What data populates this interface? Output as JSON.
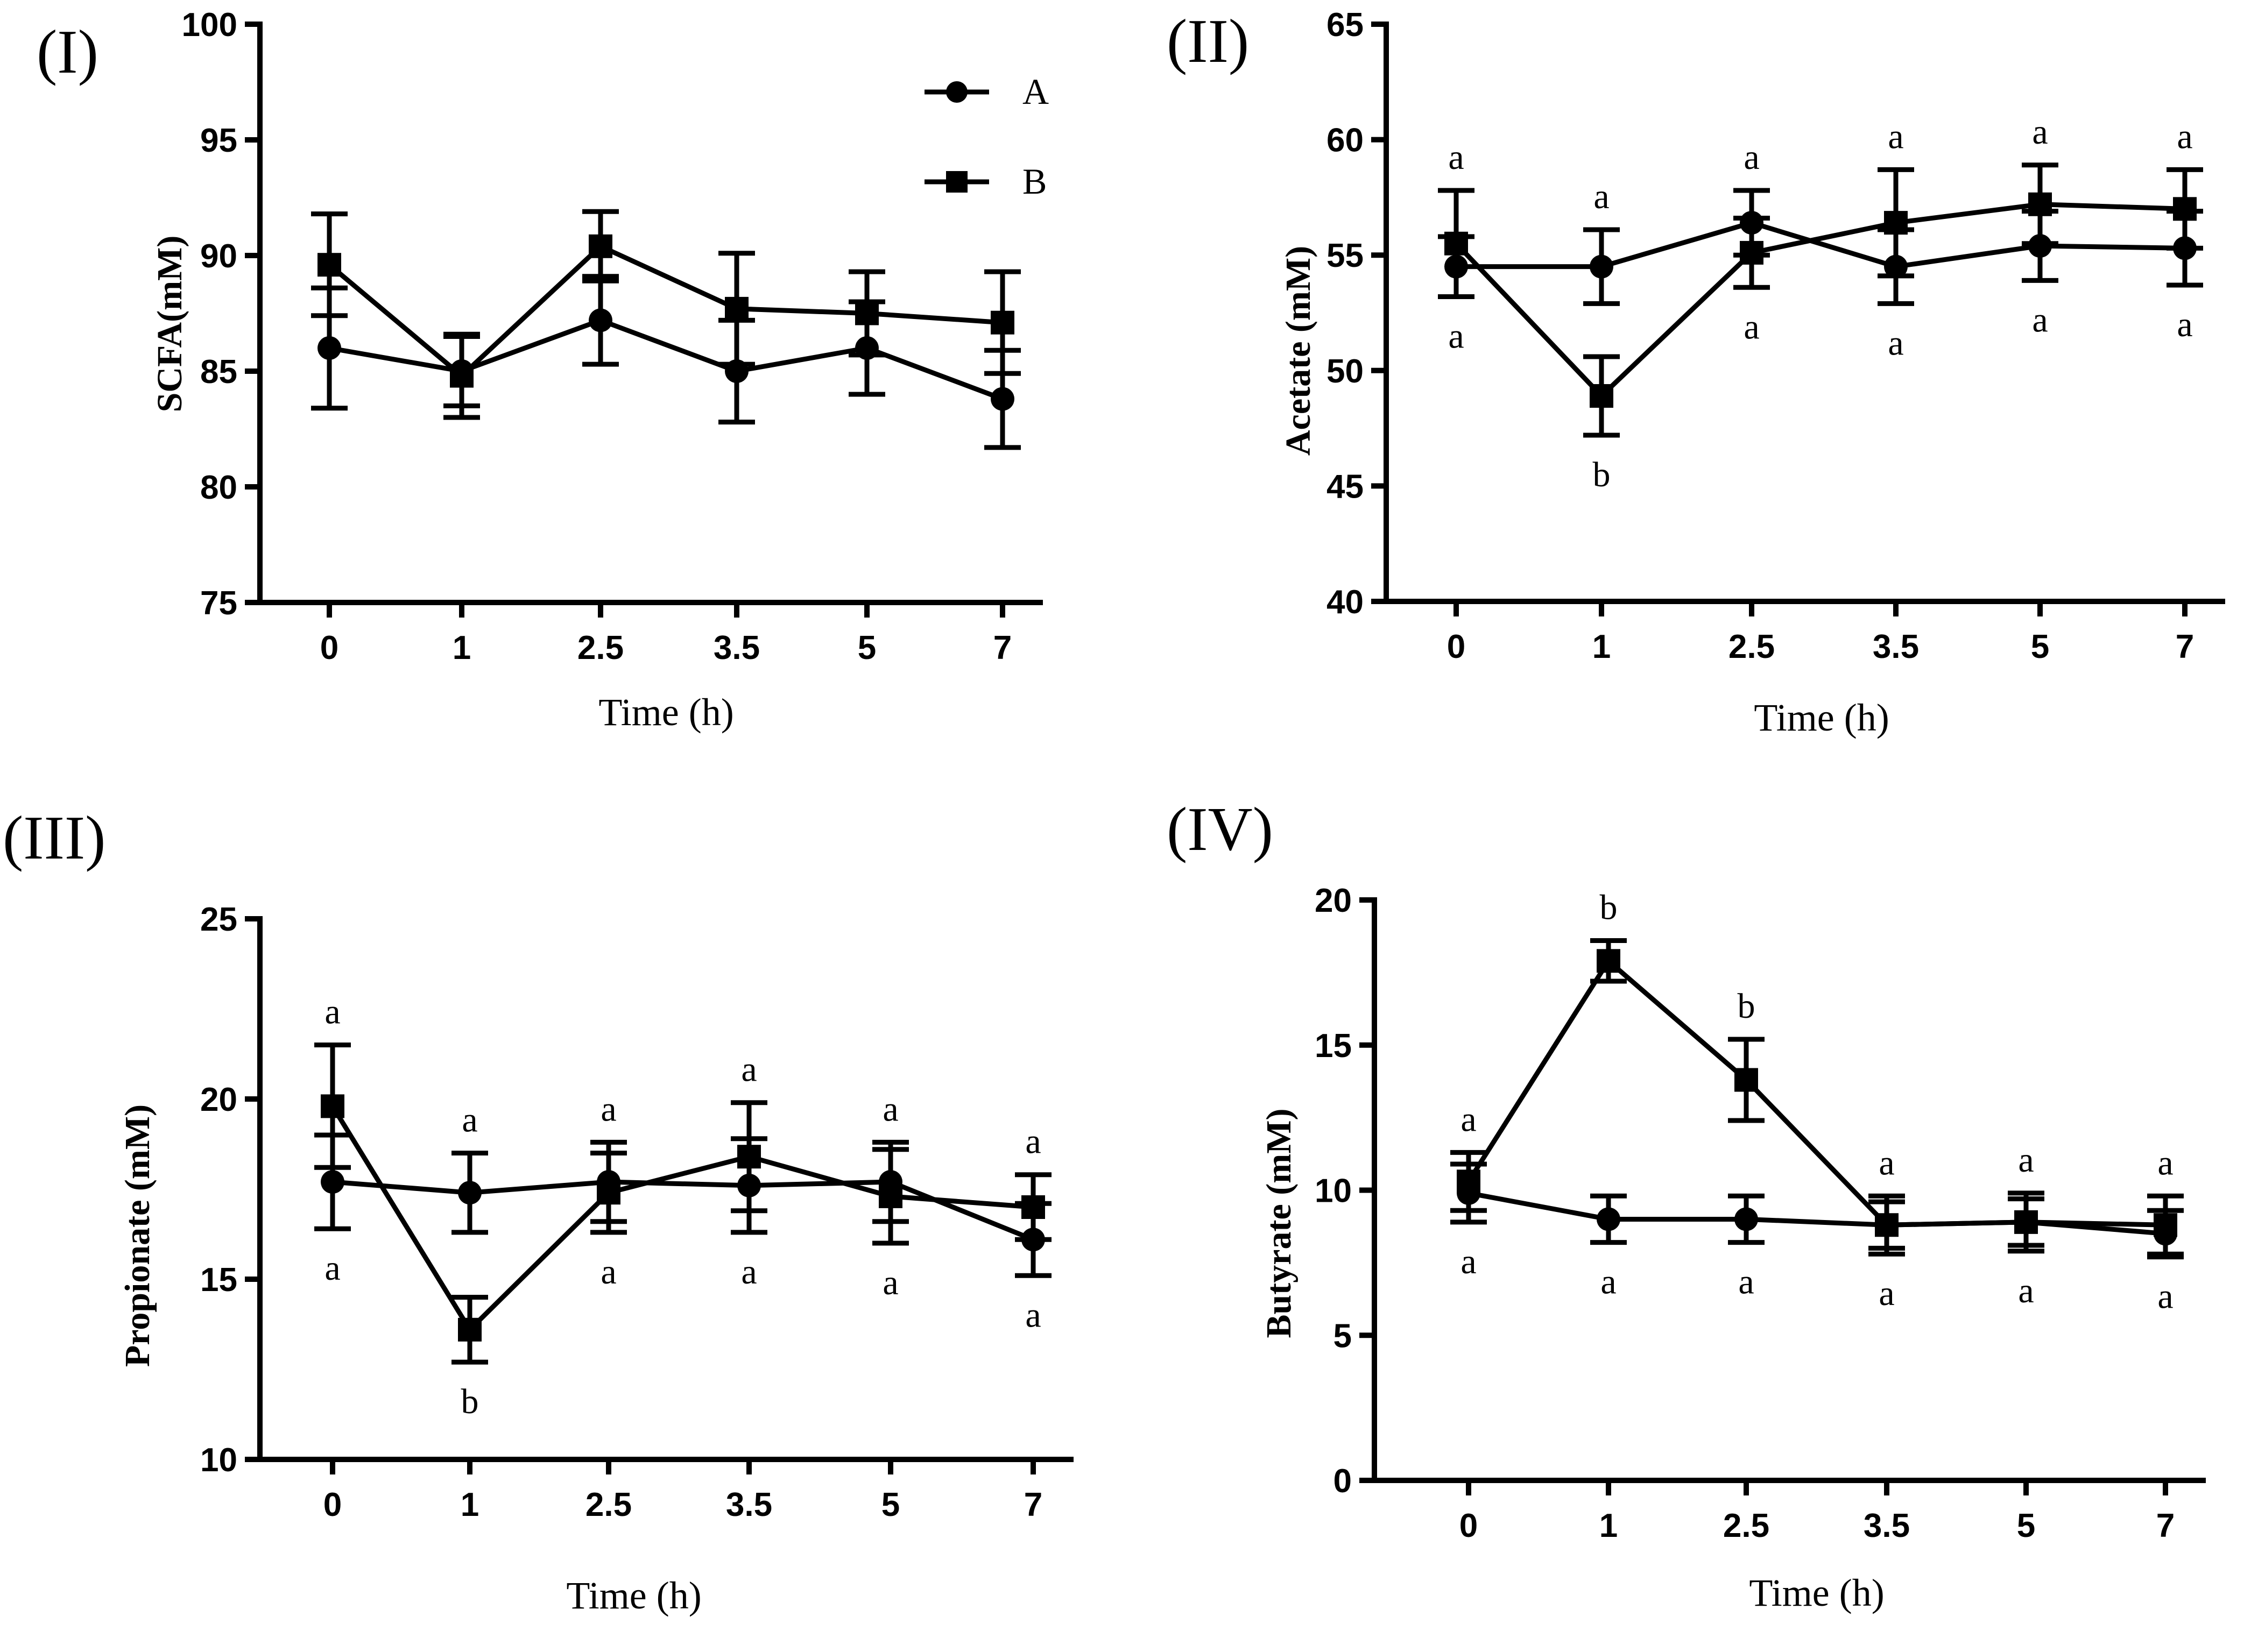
{
  "legend": [
    {
      "name": "A",
      "marker": "circle"
    },
    {
      "name": "B",
      "marker": "square"
    }
  ],
  "colors": {
    "ink": "#000000",
    "background": "#ffffff"
  },
  "chart_data": [
    {
      "type": "line",
      "panel_label": "(I)",
      "title": "",
      "xlabel": "Time (h)",
      "ylabel": "SCFA(mM)",
      "categories": [
        "0",
        "1",
        "2.5",
        "3.5",
        "5",
        "7"
      ],
      "ylim": [
        75,
        100
      ],
      "yticks": [
        75,
        80,
        85,
        90,
        95,
        100
      ],
      "grid": false,
      "legend_position": "top-right",
      "series": [
        {
          "name": "A",
          "marker": "circle",
          "values": [
            86.0,
            85.0,
            87.2,
            85.0,
            86.0,
            83.8
          ],
          "errors": [
            2.6,
            1.5,
            1.9,
            2.2,
            2.0,
            2.1
          ]
        },
        {
          "name": "B",
          "marker": "square",
          "values": [
            89.6,
            84.8,
            90.4,
            87.7,
            87.5,
            87.1
          ],
          "errors": [
            2.2,
            1.8,
            1.5,
            2.4,
            1.8,
            2.2
          ]
        }
      ],
      "annotations": []
    },
    {
      "type": "line",
      "panel_label": "(II)",
      "title": "",
      "xlabel": "Time (h)",
      "ylabel": "Acetate (mM)",
      "categories": [
        "0",
        "1",
        "2.5",
        "3.5",
        "5",
        "7"
      ],
      "ylim": [
        40,
        65
      ],
      "yticks": [
        40,
        45,
        50,
        55,
        60,
        65
      ],
      "grid": false,
      "series": [
        {
          "name": "A",
          "marker": "circle",
          "values": [
            54.5,
            54.5,
            56.4,
            54.5,
            55.4,
            55.3
          ],
          "errors": [
            1.3,
            1.6,
            1.4,
            1.6,
            1.5,
            1.6
          ]
        },
        {
          "name": "B",
          "marker": "square",
          "values": [
            55.5,
            48.9,
            55.1,
            56.4,
            57.2,
            57.0
          ],
          "errors": [
            2.3,
            1.7,
            1.5,
            2.3,
            1.7,
            1.7
          ]
        }
      ],
      "annotations": [
        {
          "category": "0",
          "top": "a",
          "bottom": "a"
        },
        {
          "category": "1",
          "top": "a",
          "bottom": "b"
        },
        {
          "category": "2.5",
          "top": "a",
          "bottom": "a"
        },
        {
          "category": "3.5",
          "top": "a",
          "bottom": "a"
        },
        {
          "category": "5",
          "top": "a",
          "bottom": "a"
        },
        {
          "category": "7",
          "top": "a",
          "bottom": "a"
        }
      ]
    },
    {
      "type": "line",
      "panel_label": "(III)",
      "title": "",
      "xlabel": "Time (h)",
      "ylabel": "Propionate (mM)",
      "categories": [
        "0",
        "1",
        "2.5",
        "3.5",
        "5",
        "7"
      ],
      "ylim": [
        10,
        25
      ],
      "yticks": [
        10,
        15,
        20,
        25
      ],
      "grid": false,
      "series": [
        {
          "name": "A",
          "marker": "circle",
          "values": [
            17.7,
            17.4,
            17.7,
            17.6,
            17.7,
            16.1
          ],
          "errors": [
            1.3,
            1.1,
            1.1,
            1.3,
            1.1,
            1.0
          ]
        },
        {
          "name": "B",
          "marker": "square",
          "values": [
            19.8,
            13.6,
            17.4,
            18.4,
            17.3,
            17.0
          ],
          "errors": [
            1.7,
            0.9,
            1.1,
            1.5,
            1.3,
            0.9
          ]
        }
      ],
      "annotations": [
        {
          "category": "0",
          "top": "a",
          "bottom": "a"
        },
        {
          "category": "1",
          "top": "a",
          "bottom": "b"
        },
        {
          "category": "2.5",
          "top": "a",
          "bottom": "a"
        },
        {
          "category": "3.5",
          "top": "a",
          "bottom": "a"
        },
        {
          "category": "5",
          "top": "a",
          "bottom": "a"
        },
        {
          "category": "7",
          "top": "a",
          "bottom": "a"
        }
      ]
    },
    {
      "type": "line",
      "panel_label": "(IV)",
      "title": "",
      "xlabel": "Time (h)",
      "ylabel": "Butyrate (mM)",
      "categories": [
        "0",
        "1",
        "2.5",
        "3.5",
        "5",
        "7"
      ],
      "ylim": [
        0,
        20
      ],
      "yticks": [
        0,
        5,
        10,
        15,
        20
      ],
      "grid": false,
      "series": [
        {
          "name": "A",
          "marker": "circle",
          "values": [
            9.9,
            9.0,
            9.0,
            8.8,
            8.9,
            8.5
          ],
          "errors": [
            1.0,
            0.8,
            0.8,
            0.8,
            0.8,
            0.8
          ]
        },
        {
          "name": "B",
          "marker": "square",
          "values": [
            10.3,
            17.9,
            13.8,
            8.8,
            8.9,
            8.8
          ],
          "errors": [
            1.0,
            0.7,
            1.4,
            1.0,
            1.0,
            1.0
          ]
        }
      ],
      "annotations": [
        {
          "category": "0",
          "top": "a",
          "bottom": "a"
        },
        {
          "category": "1",
          "top": "b",
          "bottom": "a"
        },
        {
          "category": "2.5",
          "top": "b",
          "bottom": "a"
        },
        {
          "category": "3.5",
          "top": "a",
          "bottom": "a"
        },
        {
          "category": "5",
          "top": "a",
          "bottom": "a"
        },
        {
          "category": "7",
          "top": "a",
          "bottom": "a"
        }
      ]
    }
  ]
}
